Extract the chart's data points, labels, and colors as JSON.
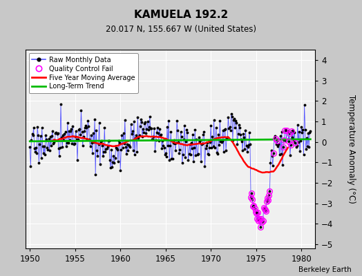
{
  "title": "KAMUELA 192.2",
  "subtitle": "20.017 N, 155.667 W (United States)",
  "ylabel": "Temperature Anomaly (°C)",
  "watermark": "Berkeley Earth",
  "xlim": [
    1949.5,
    1981.5
  ],
  "ylim": [
    -5.2,
    4.5
  ],
  "yticks": [
    -5,
    -4,
    -3,
    -2,
    -1,
    0,
    1,
    2,
    3,
    4
  ],
  "xticks": [
    1950,
    1955,
    1960,
    1965,
    1970,
    1975,
    1980
  ],
  "bg_color": "#c8c8c8",
  "plot_bg_color": "#f0f0f0",
  "grid_color": "white",
  "raw_line_color": "#5555ff",
  "raw_marker_color": "black",
  "ma_color": "red",
  "trend_color": "#00bb00",
  "qc_color": "magenta",
  "seed": 17
}
